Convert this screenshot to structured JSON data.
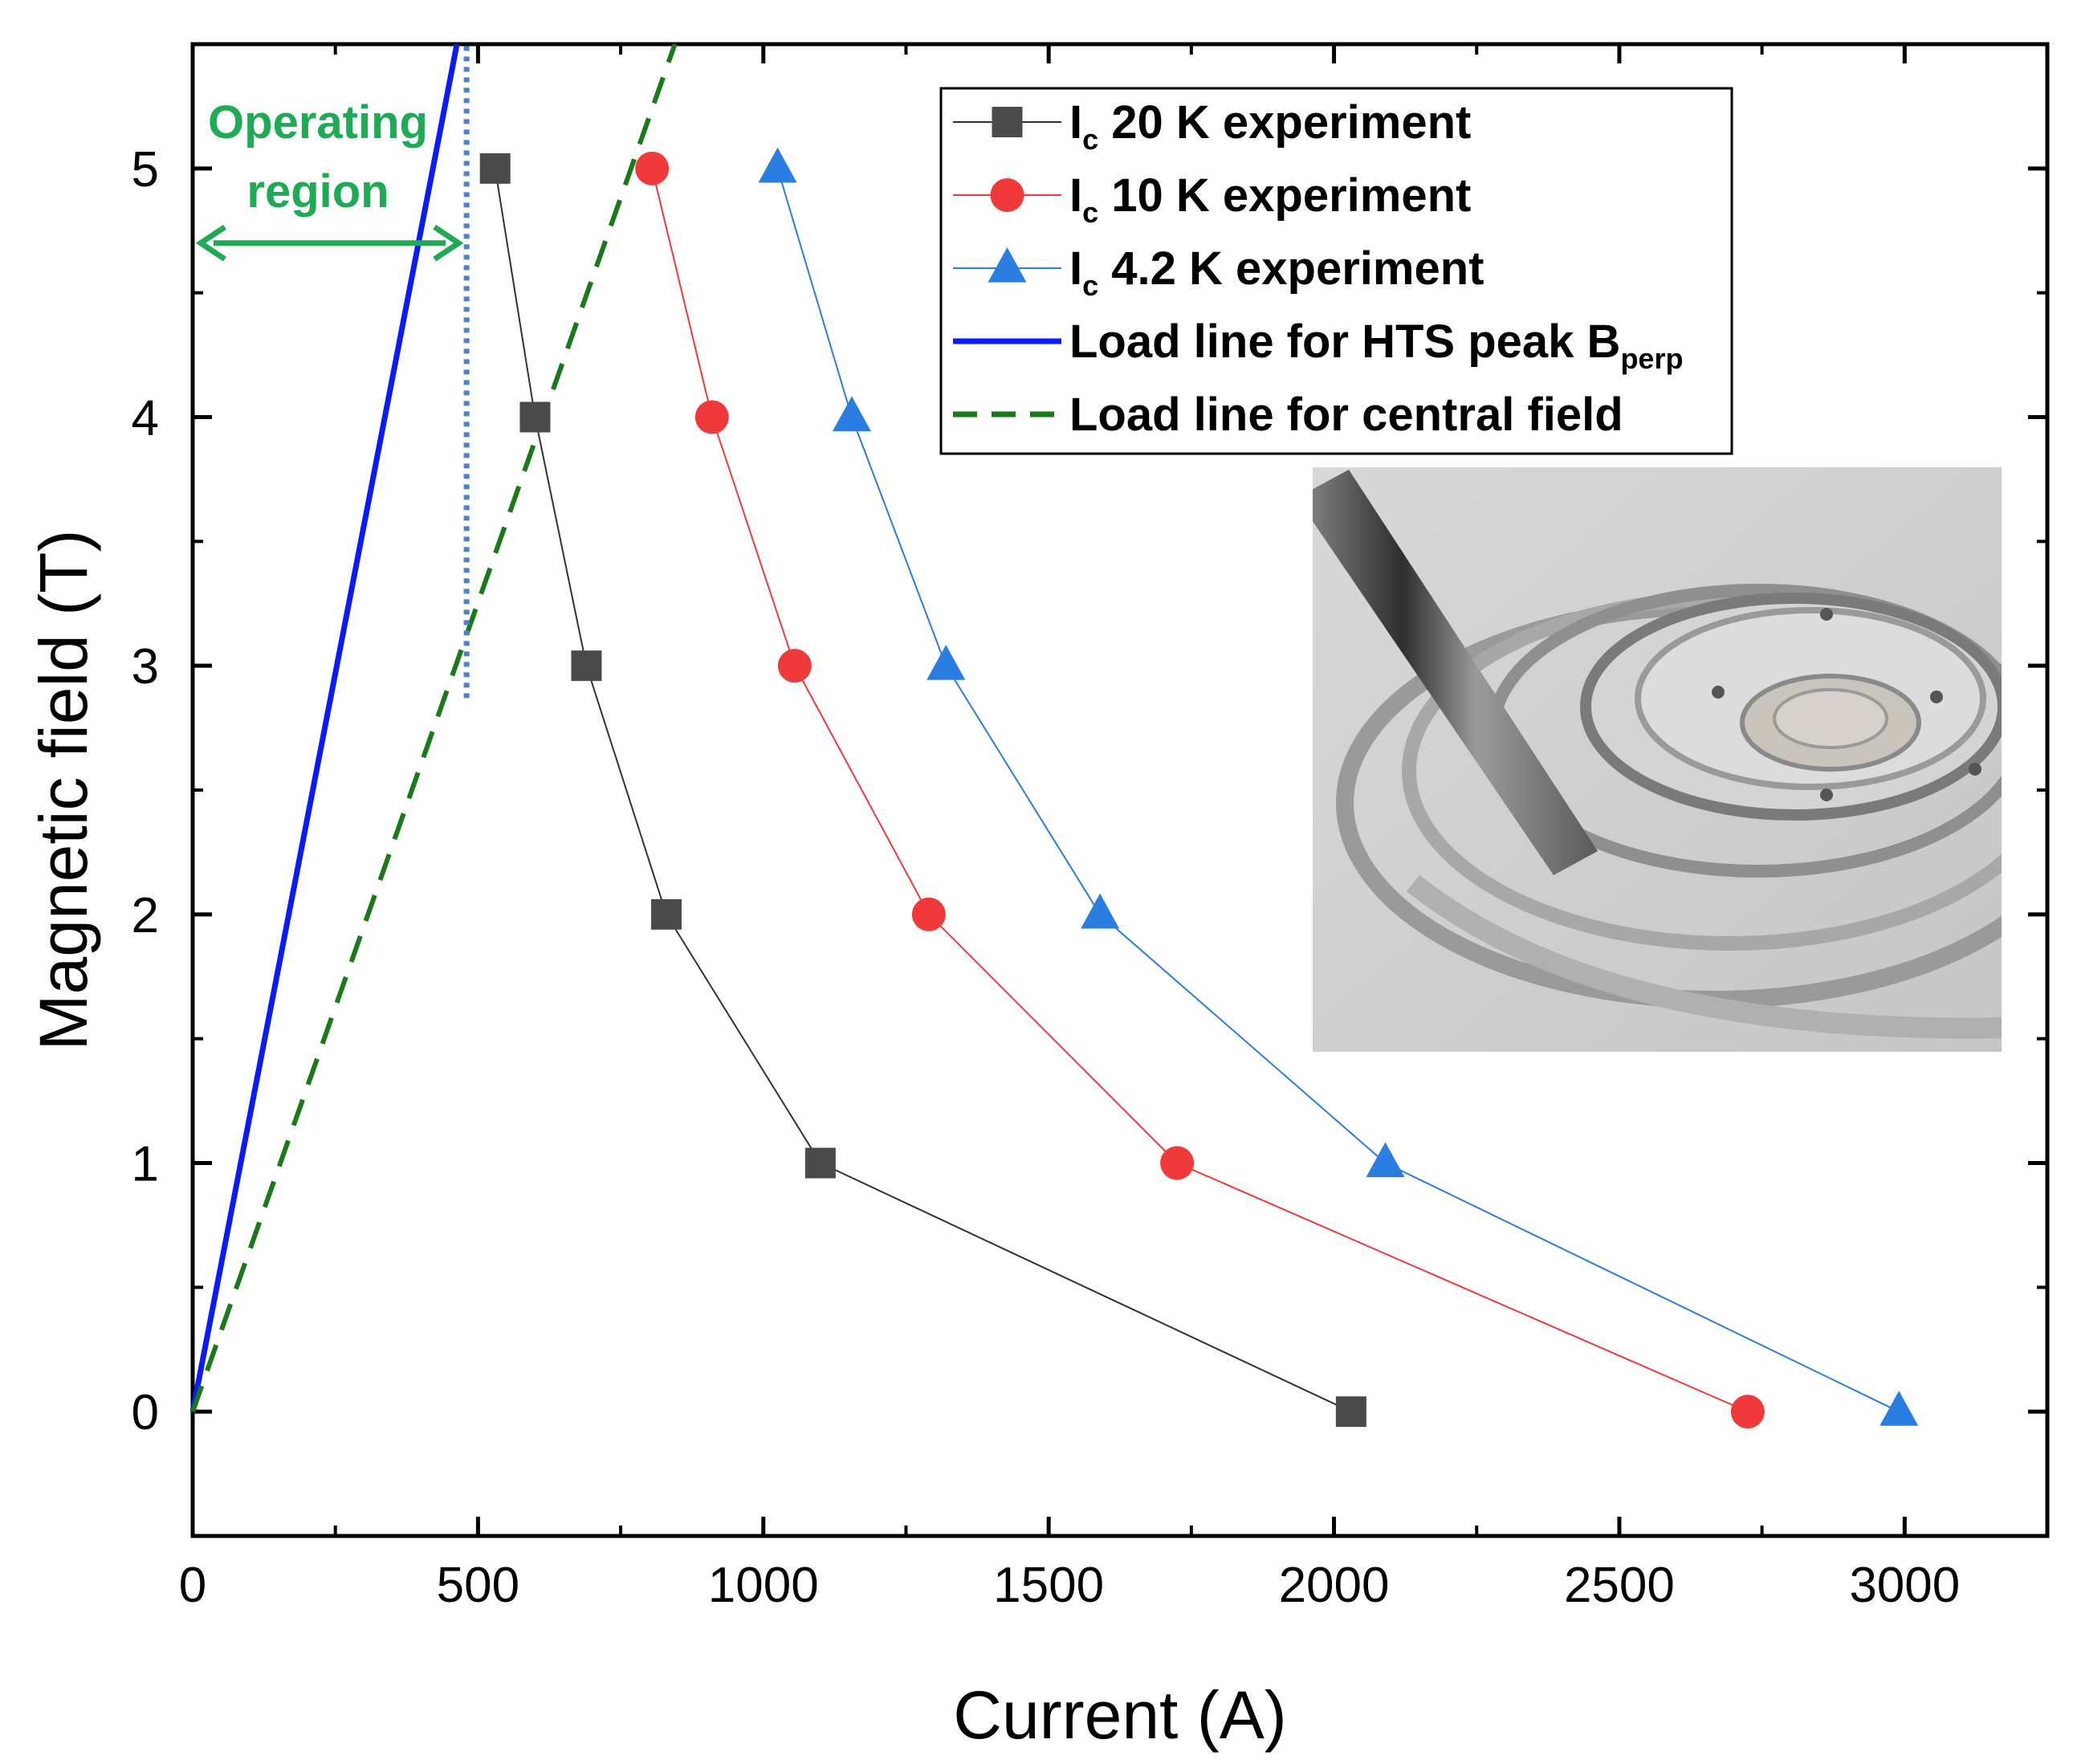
{
  "chart_data": {
    "type": "line",
    "title": "",
    "xlabel": "Current (A)",
    "ylabel": "Magnetic field (T)",
    "xlim": [
      0,
      3250
    ],
    "ylim": [
      -0.5,
      5.5
    ],
    "xticks": [
      0,
      500,
      1000,
      1500,
      2000,
      2500,
      3000
    ],
    "yticks": [
      0,
      1,
      2,
      3,
      4,
      5
    ],
    "grid": false,
    "legend_position": "top-right",
    "series": [
      {
        "name": "Ic 20 K experiment",
        "legend_main": "I",
        "legend_sub": "c",
        "legend_rest": " 20 K experiment",
        "marker": "square",
        "color": "#4a4a4a",
        "line_color": "#333333",
        "x": [
          2030,
          1100,
          830,
          690,
          600,
          530
        ],
        "y": [
          0,
          1,
          2,
          3,
          4,
          5
        ]
      },
      {
        "name": "Ic 10 K experiment",
        "legend_main": "I",
        "legend_sub": "c",
        "legend_rest": " 10 K experiment",
        "marker": "circle",
        "color": "#f0393b",
        "line_color": "#f0393b",
        "x": [
          2725,
          1725,
          1290,
          1055,
          910,
          805
        ],
        "y": [
          0,
          1,
          2,
          3,
          4,
          5
        ]
      },
      {
        "name": "Ic 4.2 K experiment",
        "legend_main": "I",
        "legend_sub": "c",
        "legend_rest": " 4.2 K experiment",
        "marker": "triangle",
        "color": "#2a7de1",
        "line_color": "#2a7de1",
        "x": [
          2990,
          2090,
          1590,
          1320,
          1155,
          1025
        ],
        "y": [
          0,
          1,
          2,
          3,
          4,
          5
        ]
      }
    ],
    "load_lines": [
      {
        "name": "Load line for HTS peak Bperp",
        "legend_main": "Load line for HTS peak B",
        "legend_sub": "perp",
        "style": "solid",
        "color": "#0a1aff",
        "x": [
          0,
          463
        ],
        "y": [
          0,
          5.5
        ]
      },
      {
        "name": "Load line for central field",
        "legend_main": "Load line for central field",
        "legend_sub": "",
        "style": "dashed",
        "color": "#1a7a1a",
        "x": [
          0,
          845
        ],
        "y": [
          0,
          5.5
        ]
      }
    ],
    "limit_line": {
      "x": 480,
      "y": [
        2.87,
        5.5
      ],
      "style": "dotted",
      "color": "#4f7fcf"
    },
    "annotation": {
      "line1": "Operating",
      "line2": "region",
      "color": "#1faa55",
      "arrow_x": [
        0,
        480
      ],
      "arrow_y": 4.7
    }
  }
}
